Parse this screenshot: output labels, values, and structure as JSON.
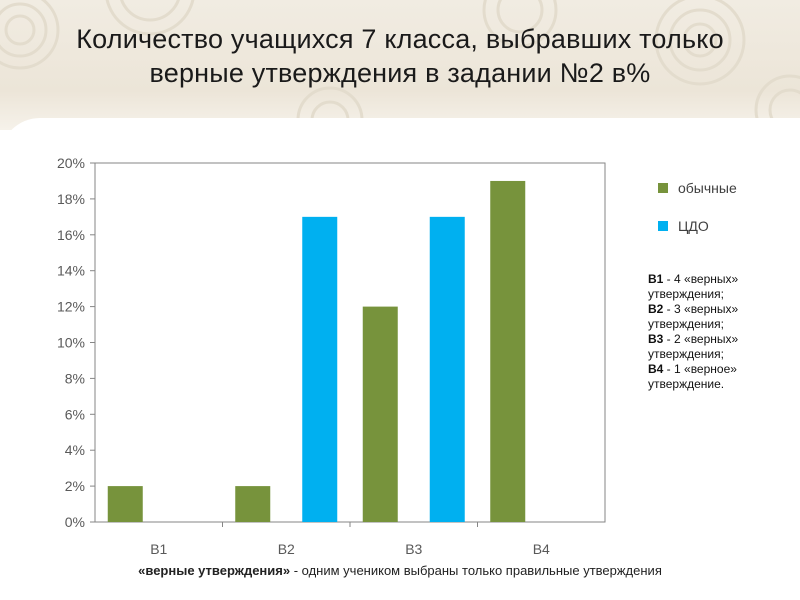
{
  "title": {
    "line1": "Количество учащихся 7 класса, выбравших только",
    "line2": "верные утверждения в задании №2  в%"
  },
  "colors": {
    "series_regular": "#77933c",
    "series_cdo": "#00b0f0",
    "axis": "#868686",
    "tick_text": "#595959",
    "banner": "#ece5d8"
  },
  "chart_data": {
    "type": "bar",
    "categories": [
      "B1",
      "B2",
      "B3",
      "B4"
    ],
    "series": [
      {
        "name": "обычные",
        "values": [
          2,
          2,
          12,
          19
        ]
      },
      {
        "name": "ЦДО",
        "values": [
          0,
          17,
          17,
          0
        ]
      }
    ],
    "y_ticks": [
      "0%",
      "2%",
      "4%",
      "6%",
      "8%",
      "10%",
      "12%",
      "14%",
      "16%",
      "18%",
      "20%"
    ],
    "ylim": [
      0,
      20
    ],
    "y_unit": "%",
    "grid": false,
    "legend_position": "right"
  },
  "legend": {
    "items": [
      {
        "label": "обычные",
        "color": "#77933c"
      },
      {
        "label": "ЦДО",
        "color": "#00b0f0"
      }
    ]
  },
  "note": {
    "entries": [
      {
        "code": "B1",
        "text": " - 4 «верных» утверждения;"
      },
      {
        "code": "B2",
        "text": "  - 3 «верных» утверждения;"
      },
      {
        "code": "B3",
        "text": " - 2 «верных» утверждения;"
      },
      {
        "code": "B4",
        "text": " - 1 «верное» утверждение."
      }
    ]
  },
  "footnote": {
    "term": "«верные утверждения»",
    "text": " - одним учеником выбраны только правильные утверждения"
  }
}
